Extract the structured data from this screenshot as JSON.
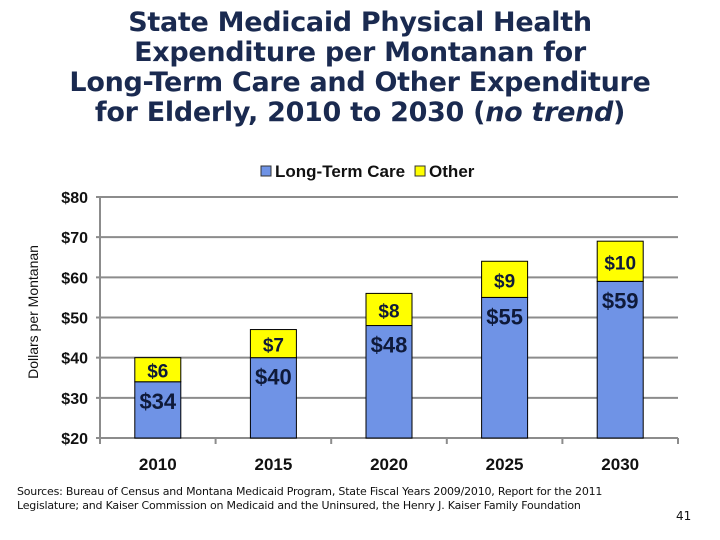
{
  "slide": {
    "title_lines": [
      "State Medicaid Physical Health",
      "Expenditure per Montanan for",
      "Long-Term Care and Other Expenditure",
      "for Elderly, 2010 to 2030 ("
    ],
    "title_italic": "no trend",
    "title_end": ")",
    "sources": "Sources:  Bureau of Census and Montana Medicaid Program, State Fiscal Years 2009/2010, Report for the 2011 Legislature; and Kaiser Commission on Medicaid and the Uninsured, the Henry J. Kaiser Family Foundation",
    "page_number": "41"
  },
  "chart_data": {
    "type": "bar",
    "stacked": true,
    "title": "State Medicaid Physical Health Expenditure per Montanan for Long-Term Care and Other Expenditure for Elderly, 2010 to 2030 (no trend)",
    "categories": [
      "2010",
      "2015",
      "2020",
      "2025",
      "2030"
    ],
    "series": [
      {
        "name": "Long-Term Care",
        "values": [
          34,
          40,
          48,
          55,
          59
        ],
        "labels": [
          "$34",
          "$40",
          "$48",
          "$55",
          "$59"
        ],
        "color": "#6f93e6"
      },
      {
        "name": "Other",
        "values": [
          6,
          7,
          8,
          9,
          10
        ],
        "labels": [
          "$6",
          "$7",
          "$8",
          "$9",
          "$10"
        ],
        "color": "#ffff00"
      }
    ],
    "xlabel": "",
    "ylabel": "Dollars per Montanan",
    "ylim": [
      20,
      80
    ],
    "yticks": [
      20,
      30,
      40,
      50,
      60,
      70,
      80
    ],
    "ytick_labels": [
      "$20",
      "$30",
      "$40",
      "$50",
      "$60",
      "$70",
      "$80"
    ],
    "grid": true,
    "legend": "top-center"
  }
}
